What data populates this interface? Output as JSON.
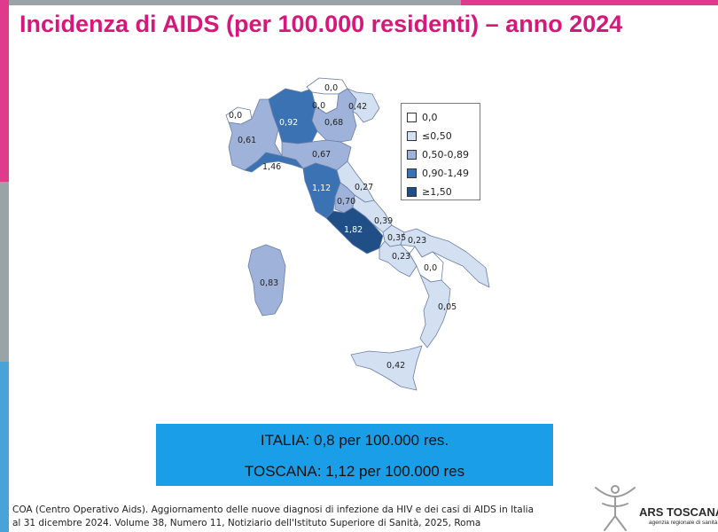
{
  "title": "Incidenza di AIDS (per 100.000 residenti) – anno 2024",
  "colors": {
    "pink": "#e03a8c",
    "title": "#d6187a",
    "grey": "#9aa3a8",
    "blue_bar": "#4aa3d8",
    "summary_bg": "#1a9ee8",
    "class_0": "#ffffff",
    "class_1": "#d3e0f1",
    "class_2": "#9fb3da",
    "class_3": "#3a72b4",
    "class_4": "#1f4f86"
  },
  "legend": {
    "items": [
      {
        "label": "0,0",
        "color": "#ffffff"
      },
      {
        "label": "≤0,50",
        "color": "#d3e0f1"
      },
      {
        "label": "0,50-0,89",
        "color": "#9fb3da"
      },
      {
        "label": "0,90-1,49",
        "color": "#3a72b4"
      },
      {
        "label": "≥1,50",
        "color": "#1f4f86"
      }
    ]
  },
  "regions": [
    {
      "name": "Valle d'Aosta",
      "value": "0,0",
      "class": 0
    },
    {
      "name": "Piemonte",
      "value": "0,61",
      "class": 2
    },
    {
      "name": "Lombardia",
      "value": "0,92",
      "class": 3
    },
    {
      "name": "Trentino",
      "value": "0,0",
      "class": 0
    },
    {
      "name": "Alto Adige",
      "value": "0,0",
      "class": 0
    },
    {
      "name": "Veneto",
      "value": "0,68",
      "class": 2
    },
    {
      "name": "Friuli Venezia Giulia",
      "value": "0,42",
      "class": 1
    },
    {
      "name": "Liguria",
      "value": "1,46",
      "class": 3
    },
    {
      "name": "Emilia-Romagna",
      "value": "0,67",
      "class": 2
    },
    {
      "name": "Toscana",
      "value": "1,12",
      "class": 3
    },
    {
      "name": "Marche",
      "value": "0,27",
      "class": 1
    },
    {
      "name": "Umbria",
      "value": "0,70",
      "class": 2
    },
    {
      "name": "Lazio",
      "value": "1,82",
      "class": 4
    },
    {
      "name": "Abruzzo",
      "value": "0,39",
      "class": 1
    },
    {
      "name": "Molise",
      "value": "0,35",
      "class": 1
    },
    {
      "name": "Campania",
      "value": "0,23",
      "class": 1
    },
    {
      "name": "Puglia",
      "value": "0,23",
      "class": 1
    },
    {
      "name": "Basilicata",
      "value": "0,0",
      "class": 0
    },
    {
      "name": "Calabria",
      "value": "0,05",
      "class": 1
    },
    {
      "name": "Sicilia",
      "value": "0,42",
      "class": 1
    },
    {
      "name": "Sardegna",
      "value": "0,83",
      "class": 2
    }
  ],
  "summary": {
    "italia": "ITALIA: 0,8 per 100.000 res.",
    "toscana": "TOSCANA: 1,12 per 100.000 res"
  },
  "source": "COA (Centro Operativo Aids). Aggiornamento delle nuove diagnosi di infezione da HIV e dei casi di AIDS in Italia al 31 dicembre 2024. Volume 38, Numero 11, Notiziario dell'Istituto Superiore di Sanità, 2025, Roma",
  "logo": {
    "name": "ARS TOSCANA",
    "subtitle": "agenzia regionale di sanità",
    "icon": "ars-figure-icon"
  }
}
